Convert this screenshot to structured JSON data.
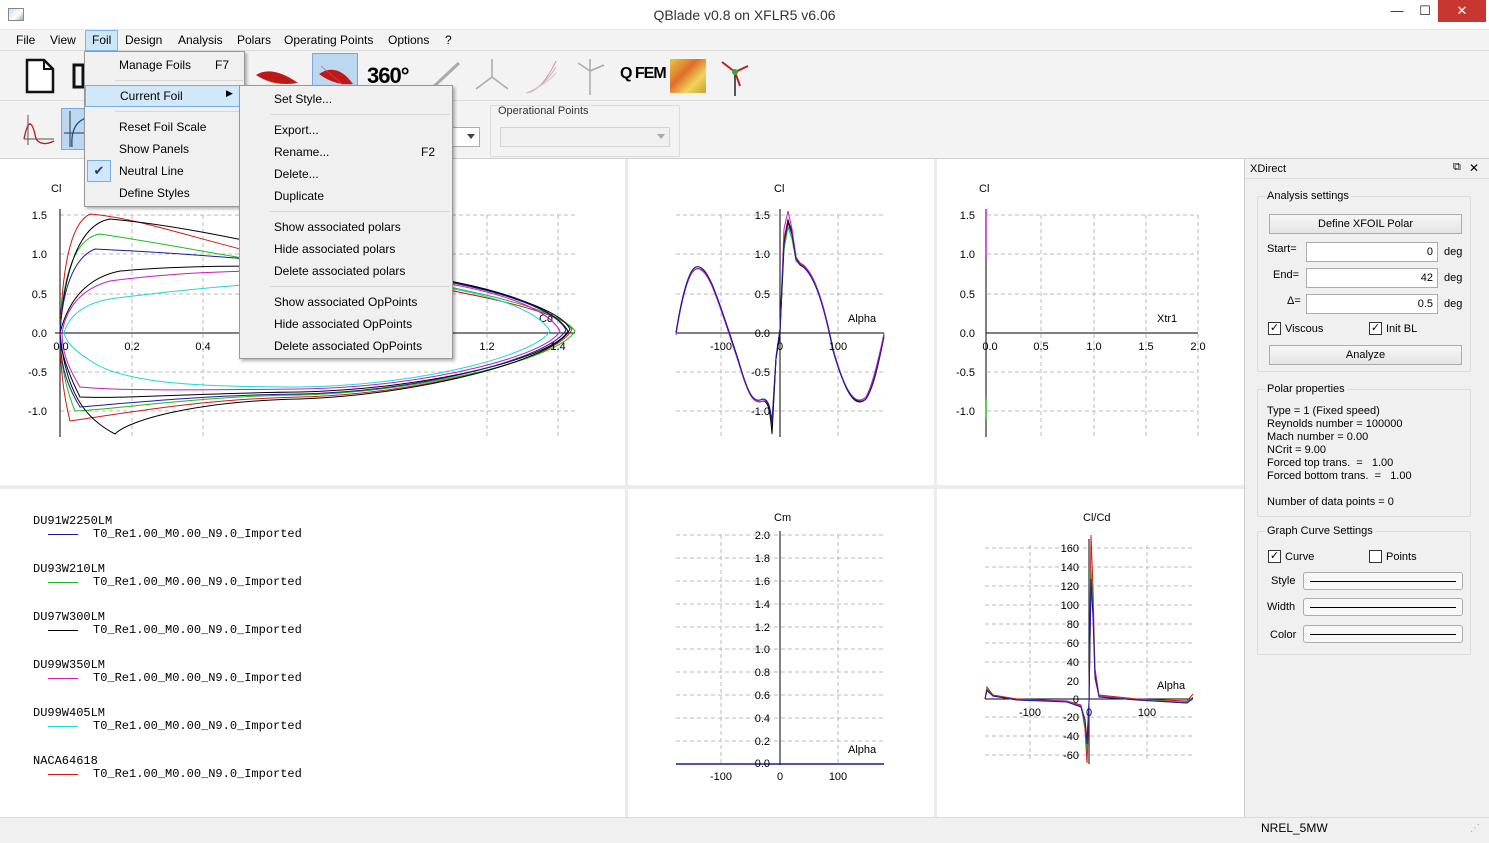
{
  "window": {
    "title": "QBlade v0.8 on XFLR5 v6.06",
    "min": "—",
    "max": "☐",
    "close": "✕"
  },
  "menu": [
    "File",
    "View",
    "Foil",
    "Design",
    "Analysis",
    "Polars",
    "Operating Points",
    "Options",
    "?"
  ],
  "toolbar": {
    "b360": "360°",
    "qfem": "Q FEM",
    "operational_points": "Operational Points"
  },
  "foil_menu": {
    "manage": "Manage Foils",
    "manage_key": "F7",
    "current": "Current Foil",
    "reset": "Reset Foil Scale",
    "panels": "Show Panels",
    "neutral": "Neutral Line",
    "styles": "Define Styles"
  },
  "current_foil_menu": {
    "set_style": "Set Style...",
    "export": "Export...",
    "rename": "Rename...",
    "rename_key": "F2",
    "delete": "Delete...",
    "duplicate": "Duplicate",
    "show_polars": "Show associated polars",
    "hide_polars": "Hide associated polars",
    "delete_polars": "Delete associated polars",
    "show_ops": "Show associated OpPoints",
    "hide_ops": "Hide associated OpPoints",
    "delete_ops": "Delete associated OpPoints"
  },
  "plots": {
    "cl_xcp": {
      "y": "Cl",
      "x": "Cd",
      "xticks": [
        "0.0",
        "0.2",
        "0.4",
        "1.2",
        "1.4"
      ],
      "yticks": [
        "1.5",
        "1.0",
        "0.5",
        "0.0",
        "-0.5",
        "-1.0"
      ]
    },
    "cl_alpha": {
      "y": "Cl",
      "x": "Alpha",
      "xticks": [
        "-100",
        "0",
        "100"
      ],
      "yticks": [
        "1.5",
        "1.0",
        "0.5",
        "0.0",
        "-0.5",
        "-1.0"
      ]
    },
    "cl_xtr": {
      "y": "Cl",
      "x": "Xtr1",
      "xticks": [
        "0.0",
        "0.5",
        "1.0",
        "1.5",
        "2.0"
      ],
      "yticks": [
        "1.5",
        "1.0",
        "0.5",
        "0.0",
        "-0.5",
        "-1.0"
      ]
    },
    "cm_alpha": {
      "y": "Cm",
      "x": "Alpha",
      "xticks": [
        "-100",
        "0",
        "100"
      ],
      "yticks": [
        "2.0",
        "1.8",
        "1.6",
        "1.4",
        "1.2",
        "1.0",
        "0.8",
        "0.6",
        "0.4",
        "0.2",
        "0.0"
      ]
    },
    "clcd_alpha": {
      "y": "Cl/Cd",
      "x": "Alpha",
      "xticks": [
        "-100",
        "0",
        "100"
      ],
      "yticks": [
        "160",
        "140",
        "120",
        "100",
        "80",
        "60",
        "40",
        "20",
        "0",
        "-20",
        "-40",
        "-60"
      ]
    }
  },
  "legend": [
    {
      "foil": "DU91W2250LM",
      "polar": "T0_Re1.00_M0.00_N9.0_Imported",
      "color": "#1a1a9a"
    },
    {
      "foil": "DU93W210LM",
      "polar": "T0_Re1.00_M0.00_N9.0_Imported",
      "color": "#22b822"
    },
    {
      "foil": "DU97W300LM",
      "polar": "T0_Re1.00_M0.00_N9.0_Imported",
      "color": "#000000"
    },
    {
      "foil": "DU99W350LM",
      "polar": "T0_Re1.00_M0.00_N9.0_Imported",
      "color": "#c020c0"
    },
    {
      "foil": "DU99W405LM",
      "polar": "T0_Re1.00_M0.00_N9.0_Imported",
      "color": "#20d8d8"
    },
    {
      "foil": "NACA64618",
      "polar": "T0_Re1.00_M0.00_N9.0_Imported",
      "color": "#d01818"
    }
  ],
  "xdirect": {
    "title": "XDirect",
    "analysis_settings": "Analysis settings",
    "define_polar": "Define XFOIL Polar",
    "start_label": "Start=",
    "start_value": "0",
    "start_unit": "deg",
    "end_label": "End=",
    "end_value": "42",
    "end_unit": "deg",
    "delta_label": "Δ=",
    "delta_value": "0.5",
    "delta_unit": "deg",
    "viscous": "Viscous",
    "init_bl": "Init BL",
    "analyze": "Analyze",
    "polar_properties": "Polar properties",
    "props": [
      "Type = 1 (Fixed speed)",
      "Reynolds number = 100000",
      "Mach number =  0.00",
      "NCrit =   9.00",
      "Forced top trans.  =   1.00",
      "Forced bottom trans.  =   1.00",
      "",
      "Number of data points = 0"
    ],
    "graph_curve": "Graph Curve Settings",
    "curve": "Curve",
    "points": "Points",
    "style": "Style",
    "width": "Width",
    "color": "Color"
  },
  "status": {
    "project": "NREL_5MW"
  }
}
